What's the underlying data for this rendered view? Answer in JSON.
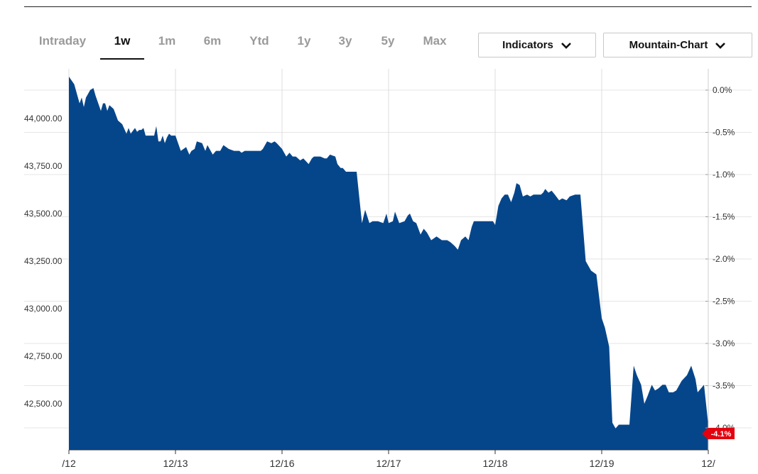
{
  "tabs": [
    {
      "label": "Intraday",
      "active": false
    },
    {
      "label": "1w",
      "active": true
    },
    {
      "label": "1m",
      "active": false
    },
    {
      "label": "6m",
      "active": false
    },
    {
      "label": "Ytd",
      "active": false
    },
    {
      "label": "1y",
      "active": false
    },
    {
      "label": "3y",
      "active": false
    },
    {
      "label": "5y",
      "active": false
    },
    {
      "label": "Max",
      "active": false
    }
  ],
  "controls": {
    "indicators_label": "Indicators",
    "chart_type_label": "Mountain-Chart",
    "indicators_icon": "chevron-down-icon",
    "chart_type_icon": "chevron-down-icon"
  },
  "colors": {
    "area": "#05468b",
    "badge": "#e3000f",
    "grid": "#e6e6e6"
  },
  "chart_data": {
    "type": "area",
    "x_tick_labels": [
      "/12",
      "12/13",
      "12/16",
      "12/17",
      "12/18",
      "12/19",
      "12/"
    ],
    "y_left_ticks": [
      "44,000.00",
      "43,750.00",
      "43,500.00",
      "43,250.00",
      "43,000.00",
      "42,750.00",
      "42,500.00"
    ],
    "y_left_values": [
      44000,
      43750,
      43500,
      43250,
      43000,
      42750,
      42500
    ],
    "y_right_ticks": [
      "0.0%",
      "-0.5%",
      "-1.0%",
      "-1.5%",
      "-2.0%",
      "-2.5%",
      "-3.0%",
      "-3.5%",
      "-4.0%"
    ],
    "y_right_values": [
      0,
      -0.5,
      -1,
      -1.5,
      -2,
      -2.5,
      -3,
      -3.5,
      -4
    ],
    "last_change_badge": "-4.1%",
    "series": [
      {
        "x": [
          0,
          0.05,
          0.1,
          0.12,
          0.14,
          0.16,
          0.2,
          0.23,
          0.25,
          0.3,
          0.32,
          0.34,
          0.36,
          0.38,
          0.4,
          0.42,
          0.44,
          0.46,
          0.5,
          0.54,
          0.56,
          0.58,
          0.62,
          0.64,
          0.66,
          0.68,
          0.7,
          0.72,
          0.76,
          0.8,
          0.82,
          0.84,
          0.86,
          0.88,
          0.9,
          0.92,
          0.94,
          0.96,
          0.98,
          1,
          1.05,
          1.1,
          1.13,
          1.15,
          1.18,
          1.2,
          1.25,
          1.28,
          1.3,
          1.35,
          1.38,
          1.42,
          1.45,
          1.5,
          1.55,
          1.6,
          1.62,
          1.65,
          1.7,
          1.75,
          1.8,
          1.82,
          1.86,
          1.9,
          1.93,
          1.95,
          2,
          2.04,
          2.07,
          2.1,
          2.13,
          2.17,
          2.2,
          2.25,
          2.28,
          2.3,
          2.33,
          2.36,
          2.4,
          2.42,
          2.45,
          2.5,
          2.52,
          2.55,
          2.57,
          2.6,
          2.63,
          2.67,
          2.7,
          2.75,
          2.78,
          2.82,
          2.85,
          2.9,
          2.95,
          2.98,
          3,
          3.04,
          3.06,
          3.1,
          3.15,
          3.18,
          3.2,
          3.23,
          3.26,
          3.3,
          3.33,
          3.36,
          3.4,
          3.45,
          3.5,
          3.55,
          3.58,
          3.62,
          3.65,
          3.68,
          3.72,
          3.75,
          3.78,
          3.8,
          3.84,
          3.87,
          3.9,
          3.95,
          3.98,
          4,
          4.03,
          4.06,
          4.09,
          4.12,
          4.15,
          4.18,
          4.2,
          4.23,
          4.26,
          4.3,
          4.33,
          4.36,
          4.4,
          4.43,
          4.45,
          4.47,
          4.5,
          4.53,
          4.56,
          4.6,
          4.63,
          4.67,
          4.7,
          4.75,
          4.8,
          4.85,
          4.9,
          4.95,
          5,
          5.03,
          5.07,
          5.1,
          5.13,
          5.16,
          5.2,
          5.23,
          5.26,
          5.3,
          5.33,
          5.37,
          5.4,
          5.43,
          5.47,
          5.5,
          5.53,
          5.57,
          5.6,
          5.63,
          5.67,
          5.7,
          5.75,
          5.8,
          5.84,
          5.88,
          5.9,
          5.93,
          5.96,
          6
        ],
        "y": [
          44220,
          44180,
          44080,
          44110,
          44060,
          44110,
          44150,
          44160,
          44120,
          44040,
          44080,
          44080,
          44040,
          44070,
          44060,
          44050,
          44020,
          43990,
          43970,
          43920,
          43950,
          43920,
          43950,
          43930,
          43940,
          43940,
          43950,
          43910,
          43910,
          43910,
          43960,
          43880,
          43880,
          43910,
          43870,
          43900,
          43920,
          43910,
          43910,
          43910,
          43830,
          43850,
          43810,
          43830,
          43840,
          43880,
          43870,
          43830,
          43860,
          43810,
          43830,
          43830,
          43860,
          43840,
          43830,
          43830,
          43820,
          43830,
          43830,
          43830,
          43830,
          43840,
          43880,
          43870,
          43880,
          43870,
          43840,
          43800,
          43820,
          43800,
          43800,
          43780,
          43790,
          43760,
          43790,
          43800,
          43800,
          43800,
          43790,
          43790,
          43810,
          43800,
          43760,
          43740,
          43740,
          43720,
          43720,
          43720,
          43720,
          43450,
          43520,
          43450,
          43460,
          43460,
          43450,
          43500,
          43450,
          43460,
          43510,
          43450,
          43460,
          43490,
          43500,
          43460,
          43450,
          43390,
          43420,
          43400,
          43360,
          43380,
          43360,
          43360,
          43350,
          43330,
          43310,
          43360,
          43380,
          43360,
          43430,
          43460,
          43460,
          43460,
          43460,
          43460,
          43460,
          43440,
          43540,
          43580,
          43600,
          43600,
          43560,
          43610,
          43660,
          43650,
          43590,
          43600,
          43590,
          43600,
          43600,
          43600,
          43610,
          43630,
          43610,
          43620,
          43600,
          43570,
          43580,
          43570,
          43590,
          43600,
          43600,
          43250,
          43200,
          43180,
          42950,
          42900,
          42800,
          42400,
          42370,
          42390,
          42390,
          42390,
          42390,
          42700,
          42650,
          42600,
          42500,
          42540,
          42600,
          42570,
          42580,
          42600,
          42600,
          42560,
          42560,
          42570,
          42620,
          42650,
          42700,
          42630,
          42560,
          42580,
          42600,
          42390
        ]
      }
    ]
  }
}
